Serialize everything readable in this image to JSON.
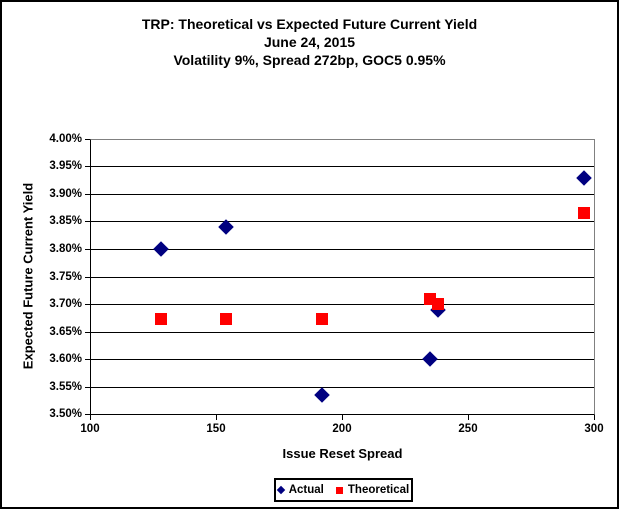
{
  "chart_data": {
    "type": "scatter",
    "title_lines": [
      "TRP: Theoretical vs Expected Future Current Yield",
      "June 24, 2015",
      "Volatility 9%, Spread 272bp, GOC5 0.95%"
    ],
    "xlabel": "Issue Reset Spread",
    "ylabel": "Expected Future Current Yield",
    "xlim": [
      100,
      300
    ],
    "ylim": [
      3.5,
      4.0
    ],
    "y_unit": "%",
    "grid": "horizontal-only",
    "legend_position": "bottom-center",
    "x_ticks": [
      {
        "value": 100,
        "label": "100"
      },
      {
        "value": 150,
        "label": "150"
      },
      {
        "value": 200,
        "label": "200"
      },
      {
        "value": 250,
        "label": "250"
      },
      {
        "value": 300,
        "label": "300"
      }
    ],
    "y_ticks": [
      {
        "value": 4.0,
        "label": "4.00%"
      },
      {
        "value": 3.95,
        "label": "3.95%"
      },
      {
        "value": 3.9,
        "label": "3.90%"
      },
      {
        "value": 3.85,
        "label": "3.85%"
      },
      {
        "value": 3.8,
        "label": "3.80%"
      },
      {
        "value": 3.75,
        "label": "3.75%"
      },
      {
        "value": 3.7,
        "label": "3.70%"
      },
      {
        "value": 3.65,
        "label": "3.65%"
      },
      {
        "value": 3.6,
        "label": "3.60%"
      },
      {
        "value": 3.55,
        "label": "3.55%"
      },
      {
        "value": 3.5,
        "label": "3.50%"
      }
    ],
    "series": [
      {
        "name": "Actual",
        "marker": "diamond",
        "color": "#000080",
        "points": [
          {
            "x": 128,
            "y": 3.8
          },
          {
            "x": 154,
            "y": 3.84
          },
          {
            "x": 192,
            "y": 3.535
          },
          {
            "x": 235,
            "y": 3.6
          },
          {
            "x": 238,
            "y": 3.69
          },
          {
            "x": 296,
            "y": 3.93
          }
        ]
      },
      {
        "name": "Theoretical",
        "marker": "square",
        "color": "#FF0000",
        "points": [
          {
            "x": 128,
            "y": 3.673
          },
          {
            "x": 154,
            "y": 3.673
          },
          {
            "x": 192,
            "y": 3.673
          },
          {
            "x": 235,
            "y": 3.71
          },
          {
            "x": 238,
            "y": 3.7
          },
          {
            "x": 296,
            "y": 3.866
          }
        ]
      }
    ],
    "colors": {
      "actual_marker": "#000080",
      "theoretical_marker": "#FF0000",
      "gridline": "#000000",
      "plot_border": "#808080",
      "axis": "#000000",
      "text": "#000000",
      "background": "#FFFFFF"
    }
  }
}
